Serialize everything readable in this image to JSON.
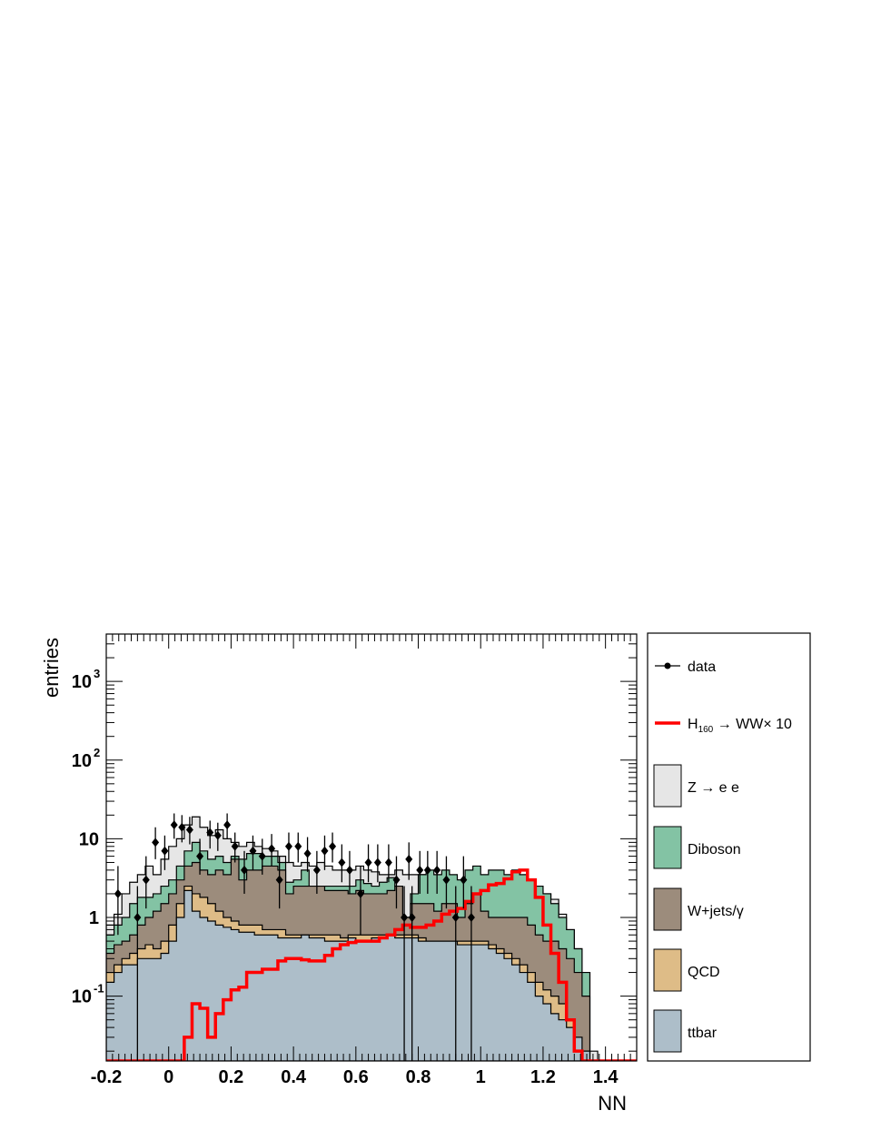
{
  "chart_data": {
    "type": "histogram",
    "xlabel": "NN",
    "ylabel": "entries",
    "xlim": [
      -0.2,
      1.5
    ],
    "ylim": [
      0.015,
      4000
    ],
    "yscale": "log",
    "bin_width": 0.025,
    "bin_start": -0.2,
    "grid": false,
    "legend_position": "right",
    "x_ticks": [
      "-0.2",
      "0",
      "0.2",
      "0.4",
      "0.6",
      "0.8",
      "1",
      "1.2",
      "1.4"
    ],
    "x_tick_values": [
      -0.2,
      0,
      0.2,
      0.4,
      0.6,
      0.8,
      1.0,
      1.2,
      1.4
    ],
    "y_ticks": [
      {
        "value": 0.1,
        "base": "10",
        "exp": "-1"
      },
      {
        "value": 1,
        "base": "1",
        "exp": ""
      },
      {
        "value": 10,
        "base": "10",
        "exp": ""
      },
      {
        "value": 100,
        "base": "10",
        "exp": "2"
      },
      {
        "value": 1000,
        "base": "10",
        "exp": "3"
      }
    ],
    "legend": [
      {
        "label": "data",
        "kind": "marker"
      },
      {
        "label": "H",
        "sub": "160",
        "rest": " → WW× 10",
        "kind": "line"
      },
      {
        "label": "Z → e e",
        "kind": "box",
        "color": "#e6e6e6"
      },
      {
        "label": "Diboson",
        "kind": "box",
        "color": "#83c3a4"
      },
      {
        "label": "W+jets/γ",
        "kind": "box",
        "color": "#9c8c7c"
      },
      {
        "label": "QCD",
        "kind": "box",
        "color": "#debc87"
      },
      {
        "label": "ttbar",
        "kind": "box",
        "color": "#adbec9"
      }
    ],
    "series": [
      {
        "name": "Z → e e",
        "color": "#e6e6e6",
        "values": [
          0.8,
          1.1,
          2.0,
          2.8,
          3.5,
          4.5,
          3.5,
          5.5,
          8.0,
          10.0,
          15.0,
          19.0,
          14.0,
          11.0,
          13.0,
          10.0,
          9.0,
          8.0,
          9.0,
          8.0,
          7.5,
          7.0,
          6.0,
          5.0,
          4.5,
          5.0,
          4.5,
          5.0,
          4.5,
          4.0,
          4.0,
          4.0,
          4.5,
          4.0,
          3.8,
          3.5,
          3.5,
          4.0,
          3.5,
          3.5,
          3.5,
          3.0,
          3.0,
          3.0,
          3.2,
          3.0,
          3.5,
          3.0,
          3.0,
          3.0,
          2.8,
          2.5,
          2.5,
          2.8,
          2.5,
          2.2,
          2.0,
          1.7,
          1.1,
          0.7,
          0.4,
          0.2,
          0.02,
          0.015,
          0.015,
          0.015,
          0.015,
          0.015
        ]
      },
      {
        "name": "Diboson",
        "color": "#83c3a4",
        "values": [
          0.6,
          0.8,
          1.0,
          1.5,
          1.8,
          1.8,
          2.0,
          2.5,
          3.0,
          4.5,
          7.0,
          9.0,
          7.0,
          5.5,
          6.0,
          5.0,
          6.0,
          5.5,
          6.5,
          6.5,
          6.0,
          6.0,
          5.0,
          2.8,
          3.0,
          4.0,
          2.5,
          2.5,
          2.5,
          2.5,
          2.5,
          2.5,
          3.0,
          2.7,
          2.5,
          2.8,
          3.2,
          2.5,
          1.0,
          2.0,
          3.5,
          4.0,
          3.5,
          4.0,
          3.5,
          3.0,
          4.0,
          4.5,
          3.5,
          4.0,
          4.0,
          3.5,
          4.0,
          3.5,
          3.0,
          2.5,
          2.0,
          1.5,
          1.0,
          0.7,
          0.4,
          0.2,
          0.015,
          0.015,
          0.015,
          0.015,
          0.015,
          0.015
        ]
      },
      {
        "name": "W+jets/γ",
        "color": "#9c8c7c",
        "values": [
          0.35,
          0.45,
          0.5,
          0.6,
          0.8,
          1.0,
          1.2,
          1.5,
          2.0,
          3.0,
          4.5,
          5.0,
          4.0,
          3.5,
          4.0,
          3.5,
          5.5,
          3.0,
          4.0,
          4.0,
          4.5,
          4.5,
          4.0,
          2.0,
          2.5,
          2.5,
          2.5,
          2.5,
          2.2,
          2.2,
          2.2,
          2.0,
          2.2,
          2.0,
          2.0,
          2.0,
          2.2,
          2.5,
          1.0,
          1.5,
          1.5,
          1.5,
          1.2,
          1.5,
          1.5,
          1.0,
          1.5,
          2.0,
          1.2,
          1.0,
          1.0,
          1.0,
          1.0,
          1.0,
          0.8,
          0.6,
          0.5,
          0.5,
          0.4,
          0.3,
          0.2,
          0.1,
          0.015,
          0.015,
          0.015,
          0.015,
          0.015,
          0.015
        ]
      },
      {
        "name": "QCD",
        "color": "#debc87",
        "values": [
          0.2,
          0.25,
          0.3,
          0.35,
          0.4,
          0.45,
          0.4,
          0.5,
          0.8,
          1.5,
          2.5,
          2.0,
          1.8,
          1.5,
          1.2,
          1.0,
          0.9,
          0.8,
          0.8,
          0.8,
          0.7,
          0.7,
          0.7,
          0.6,
          0.6,
          0.6,
          0.6,
          0.6,
          0.6,
          0.6,
          0.55,
          0.6,
          0.6,
          0.6,
          0.6,
          0.6,
          0.6,
          0.6,
          0.6,
          0.6,
          0.55,
          0.5,
          0.5,
          0.5,
          0.5,
          0.5,
          0.5,
          0.5,
          0.5,
          0.45,
          0.4,
          0.35,
          0.3,
          0.25,
          0.2,
          0.15,
          0.12,
          0.1,
          0.08,
          0.05,
          0.03,
          0.02,
          0.015,
          0.015,
          0.015,
          0.015,
          0.015,
          0.015
        ]
      },
      {
        "name": "ttbar",
        "color": "#adbec9",
        "values": [
          0.15,
          0.2,
          0.25,
          0.25,
          0.3,
          0.3,
          0.3,
          0.35,
          0.5,
          1.0,
          2.2,
          1.2,
          1.0,
          0.9,
          0.8,
          0.75,
          0.7,
          0.65,
          0.65,
          0.6,
          0.6,
          0.6,
          0.55,
          0.55,
          0.55,
          0.6,
          0.55,
          0.55,
          0.5,
          0.5,
          0.5,
          0.55,
          0.5,
          0.5,
          0.55,
          0.55,
          0.6,
          0.55,
          0.55,
          0.55,
          0.5,
          0.5,
          0.5,
          0.5,
          0.5,
          0.45,
          0.45,
          0.45,
          0.45,
          0.4,
          0.35,
          0.3,
          0.25,
          0.2,
          0.15,
          0.1,
          0.08,
          0.06,
          0.05,
          0.04,
          0.03,
          0.02,
          0.015,
          0.015,
          0.015,
          0.015,
          0.015,
          0.015
        ]
      },
      {
        "name": "H160 → WW× 10",
        "color": "#ff0000",
        "values": [
          0.015,
          0.015,
          0.015,
          0.015,
          0.015,
          0.015,
          0.015,
          0.015,
          0.015,
          0.015,
          0.03,
          0.08,
          0.07,
          0.03,
          0.06,
          0.09,
          0.12,
          0.13,
          0.2,
          0.2,
          0.22,
          0.22,
          0.28,
          0.3,
          0.3,
          0.29,
          0.28,
          0.28,
          0.33,
          0.4,
          0.45,
          0.48,
          0.5,
          0.5,
          0.5,
          0.55,
          0.6,
          0.7,
          0.8,
          0.75,
          0.75,
          0.8,
          0.9,
          1.1,
          1.2,
          1.3,
          1.6,
          2.0,
          2.2,
          2.6,
          2.7,
          3.1,
          3.8,
          4.0,
          3.0,
          1.8,
          0.8,
          0.35,
          0.15,
          0.05,
          0.02,
          0.015,
          0.015,
          0.015,
          0.015,
          0.015,
          0.015,
          0.015
        ]
      }
    ],
    "data_points": [
      {
        "x": -0.1625,
        "y": 2.0,
        "lo": 0.6,
        "hi": 4.5
      },
      {
        "x": -0.1,
        "y": 1.0,
        "lo": 0.0,
        "hi": 2.5
      },
      {
        "x": -0.0725,
        "y": 3.0,
        "lo": 1.3,
        "hi": 6.0
      },
      {
        "x": -0.0425,
        "y": 9.0,
        "lo": 5.5,
        "hi": 14.0
      },
      {
        "x": -0.0125,
        "y": 7.0,
        "lo": 4.0,
        "hi": 11.0
      },
      {
        "x": 0.0175,
        "y": 15.0,
        "lo": 10.0,
        "hi": 21.0
      },
      {
        "x": 0.0425,
        "y": 14.0,
        "lo": 9.0,
        "hi": 20.0
      },
      {
        "x": 0.0675,
        "y": 13.0,
        "lo": 8.5,
        "hi": 19.0
      },
      {
        "x": 0.1,
        "y": 6.0,
        "lo": 3.5,
        "hi": 10.0
      },
      {
        "x": 0.1325,
        "y": 12.0,
        "lo": 7.5,
        "hi": 17.0
      },
      {
        "x": 0.1575,
        "y": 11.0,
        "lo": 7.0,
        "hi": 16.0
      },
      {
        "x": 0.1875,
        "y": 15.0,
        "lo": 10.0,
        "hi": 21.0
      },
      {
        "x": 0.2125,
        "y": 8.0,
        "lo": 5.0,
        "hi": 12.0
      },
      {
        "x": 0.2425,
        "y": 4.0,
        "lo": 2.0,
        "hi": 7.0
      },
      {
        "x": 0.27,
        "y": 7.0,
        "lo": 4.0,
        "hi": 11.0
      },
      {
        "x": 0.3,
        "y": 6.0,
        "lo": 3.5,
        "hi": 10.0
      },
      {
        "x": 0.33,
        "y": 7.5,
        "lo": 4.5,
        "hi": 11.5
      },
      {
        "x": 0.355,
        "y": 3.0,
        "lo": 1.3,
        "hi": 6.0
      },
      {
        "x": 0.385,
        "y": 8.0,
        "lo": 5.0,
        "hi": 12.0
      },
      {
        "x": 0.415,
        "y": 8.0,
        "lo": 5.0,
        "hi": 12.0
      },
      {
        "x": 0.445,
        "y": 6.5,
        "lo": 3.8,
        "hi": 10.5
      },
      {
        "x": 0.475,
        "y": 4.0,
        "lo": 2.0,
        "hi": 7.0
      },
      {
        "x": 0.5,
        "y": 7.0,
        "lo": 4.0,
        "hi": 11.0
      },
      {
        "x": 0.525,
        "y": 8.0,
        "lo": 5.0,
        "hi": 12.0
      },
      {
        "x": 0.555,
        "y": 5.0,
        "lo": 2.8,
        "hi": 8.5
      },
      {
        "x": 0.58,
        "y": 4.0,
        "lo": 2.0,
        "hi": 7.0
      },
      {
        "x": 0.615,
        "y": 2.0,
        "lo": 0.6,
        "hi": 4.5
      },
      {
        "x": 0.64,
        "y": 5.0,
        "lo": 2.8,
        "hi": 8.5
      },
      {
        "x": 0.67,
        "y": 5.0,
        "lo": 2.8,
        "hi": 8.5
      },
      {
        "x": 0.705,
        "y": 5.0,
        "lo": 2.8,
        "hi": 8.5
      },
      {
        "x": 0.73,
        "y": 3.0,
        "lo": 1.3,
        "hi": 6.0
      },
      {
        "x": 0.755,
        "y": 1.0,
        "lo": 0.0,
        "hi": 2.5
      },
      {
        "x": 0.77,
        "y": 5.5,
        "lo": 3.0,
        "hi": 9.0
      },
      {
        "x": 0.78,
        "y": 1.0,
        "lo": 0.0,
        "hi": 2.5
      },
      {
        "x": 0.805,
        "y": 4.0,
        "lo": 2.0,
        "hi": 7.0
      },
      {
        "x": 0.83,
        "y": 4.0,
        "lo": 2.0,
        "hi": 7.0
      },
      {
        "x": 0.86,
        "y": 4.0,
        "lo": 2.0,
        "hi": 7.0
      },
      {
        "x": 0.89,
        "y": 3.0,
        "lo": 1.3,
        "hi": 6.0
      },
      {
        "x": 0.92,
        "y": 1.0,
        "lo": 0.0,
        "hi": 2.5
      },
      {
        "x": 0.945,
        "y": 3.0,
        "lo": 1.3,
        "hi": 6.0
      },
      {
        "x": 0.97,
        "y": 1.0,
        "lo": 0.0,
        "hi": 2.5
      }
    ]
  }
}
